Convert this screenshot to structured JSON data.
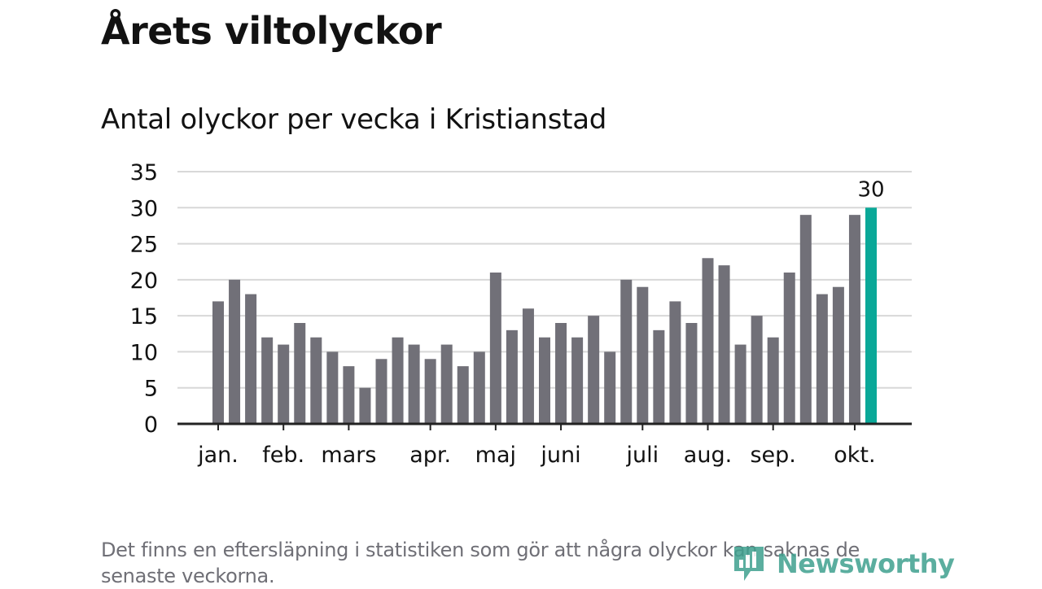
{
  "title": "Årets viltolyckor",
  "subtitle": "Antal olyckor per vecka i Kristianstad",
  "footnote": "Det finns en eftersläpning i statistiken som gör att några olyckor kan saknas de senaste veckorna.",
  "logo": {
    "text": "Newsworthy",
    "icon": "newsworthy-bar-chart-icon"
  },
  "colors": {
    "bar": "#717078",
    "highlight": "#0aa898",
    "grid": "#d8d8d8",
    "axis": "#222222",
    "text": "#121212",
    "footnote": "#6f6f76",
    "logo": "#3fa18f"
  },
  "chart_data": {
    "type": "bar",
    "title": "Antal olyckor per vecka i Kristianstad",
    "xlabel": "",
    "ylabel": "",
    "ylim": [
      0,
      35
    ],
    "yticks": [
      0,
      5,
      10,
      15,
      20,
      25,
      30,
      35
    ],
    "grid": true,
    "values": [
      17,
      20,
      18,
      12,
      11,
      14,
      12,
      10,
      8,
      5,
      9,
      12,
      11,
      9,
      11,
      8,
      10,
      21,
      13,
      16,
      12,
      14,
      12,
      15,
      10,
      20,
      19,
      13,
      17,
      14,
      23,
      22,
      11,
      15,
      12,
      21,
      29,
      18,
      19,
      29,
      30
    ],
    "highlight_index": 40,
    "highlight_label": "30",
    "month_labels": [
      {
        "label": "jan.",
        "bar_index": 0
      },
      {
        "label": "feb.",
        "bar_index": 4
      },
      {
        "label": "mars",
        "bar_index": 8
      },
      {
        "label": "apr.",
        "bar_index": 13
      },
      {
        "label": "maj",
        "bar_index": 17
      },
      {
        "label": "juni",
        "bar_index": 21
      },
      {
        "label": "juli",
        "bar_index": 26
      },
      {
        "label": "aug.",
        "bar_index": 30
      },
      {
        "label": "sep.",
        "bar_index": 34
      },
      {
        "label": "okt.",
        "bar_index": 39
      }
    ]
  }
}
